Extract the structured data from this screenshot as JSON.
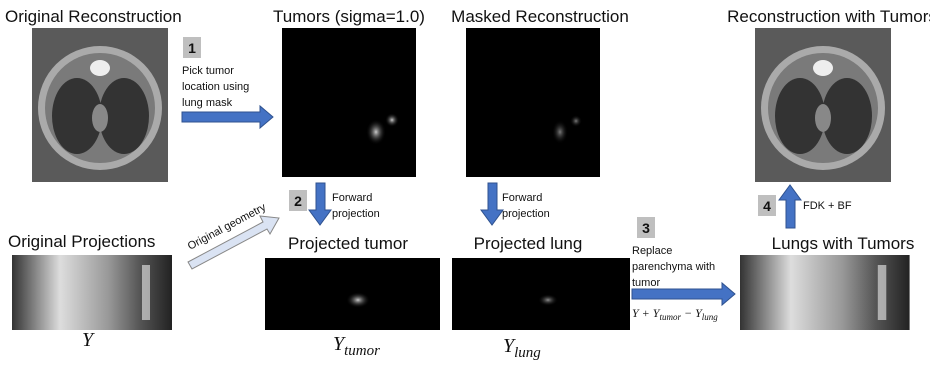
{
  "panels": {
    "original_reconstruction": "Original Reconstruction",
    "tumors": "Tumors (sigma=1.0)",
    "masked_reconstruction": "Masked Reconstruction",
    "reconstruction_with_tumors": "Reconstruction with Tumors",
    "original_projections": "Original Projections",
    "projected_tumor": "Projected tumor",
    "projected_lung": "Projected lung",
    "lungs_with_tumors": "Lungs with Tumors"
  },
  "steps": [
    {
      "number": "1",
      "lines": [
        "Pick tumor",
        "location using",
        "lung mask"
      ]
    },
    {
      "number": "2",
      "lines": [
        "Forward",
        "projection"
      ]
    },
    {
      "number": "3",
      "lines": [
        "Replace",
        "parenchyma with",
        "tumor"
      ]
    },
    {
      "number": "4",
      "lines": [
        "FDK + BF"
      ]
    }
  ],
  "forward_projection_lung": [
    "Forward",
    "projection"
  ],
  "arrow_label": "Original geometry",
  "symbols": {
    "y": "Y",
    "y_tumor": {
      "base": "Y",
      "sub": "tumor"
    },
    "y_lung": {
      "base": "Y",
      "sub": "lung"
    },
    "formula": [
      {
        "base": "Y + Y",
        "sub": "tumor"
      },
      {
        "base": " − Y",
        "sub": "lung"
      }
    ]
  }
}
